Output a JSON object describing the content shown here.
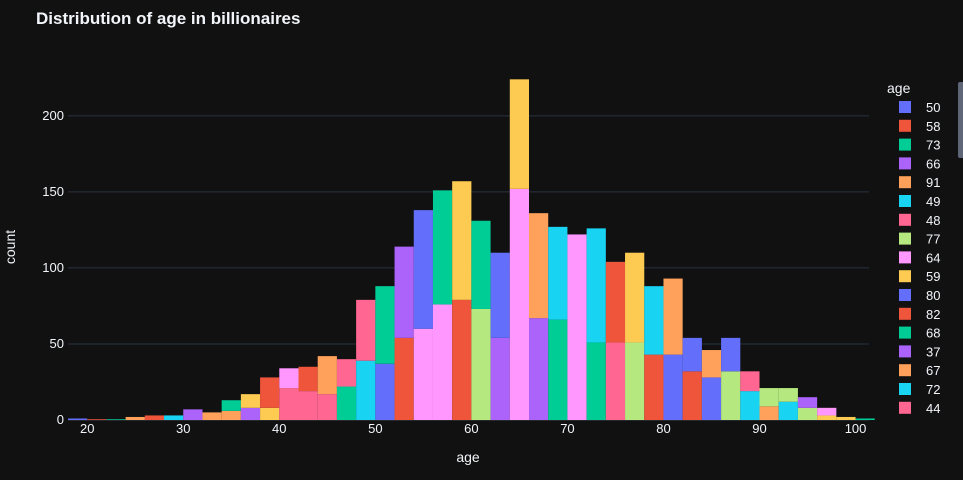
{
  "chart_data": {
    "type": "bar",
    "title": "Distribution of age in billionaires",
    "xlabel": "age",
    "ylabel": "count",
    "xlim": [
      18,
      101.4
    ],
    "ylim": [
      0,
      240
    ],
    "xticks": [
      "20",
      "30",
      "40",
      "50",
      "60",
      "70",
      "80",
      "90",
      "100"
    ],
    "yticks": [
      "0",
      "50",
      "100",
      "150",
      "200"
    ],
    "grid": true,
    "legend_title": "age",
    "legend_position": "right",
    "bin_width": 2,
    "bars": [
      {
        "x0": 18,
        "base": 0,
        "value": 1,
        "color": "#636efa"
      },
      {
        "x0": 20,
        "base": 0,
        "value": 0.5,
        "color": "#ef553b"
      },
      {
        "x0": 22,
        "base": 0,
        "value": 0.5,
        "color": "#00cc96"
      },
      {
        "x0": 24,
        "base": 0,
        "value": 2,
        "color": "#ffa15a"
      },
      {
        "x0": 26,
        "base": 0,
        "value": 3,
        "color": "#ef553b"
      },
      {
        "x0": 28,
        "base": 0,
        "value": 3,
        "color": "#19d3f3"
      },
      {
        "x0": 30,
        "base": 0,
        "value": 7,
        "color": "#ab63fa"
      },
      {
        "x0": 32,
        "base": 0,
        "value": 5,
        "color": "#ffa15a"
      },
      {
        "x0": 34,
        "base": 0,
        "value": 6,
        "color": "#ffa15a"
      },
      {
        "x0": 34,
        "base": 6,
        "value": 7,
        "color": "#00cc96"
      },
      {
        "x0": 36,
        "base": 0,
        "value": 8,
        "color": "#ab63fa"
      },
      {
        "x0": 36,
        "base": 8,
        "value": 9,
        "color": "#fecb52"
      },
      {
        "x0": 38,
        "base": 0,
        "value": 8,
        "color": "#fecb52"
      },
      {
        "x0": 38,
        "base": 8,
        "value": 20,
        "color": "#ef553b"
      },
      {
        "x0": 40,
        "base": 0,
        "value": 21,
        "color": "#ff6692"
      },
      {
        "x0": 40,
        "base": 21,
        "value": 13,
        "color": "#ff97ff"
      },
      {
        "x0": 42,
        "base": 0,
        "value": 19,
        "color": "#ff6692"
      },
      {
        "x0": 42,
        "base": 19,
        "value": 16,
        "color": "#ef553b"
      },
      {
        "x0": 44,
        "base": 0,
        "value": 17,
        "color": "#ff6692"
      },
      {
        "x0": 44,
        "base": 17,
        "value": 25,
        "color": "#ffa15a"
      },
      {
        "x0": 46,
        "base": 0,
        "value": 22,
        "color": "#00cc96"
      },
      {
        "x0": 46,
        "base": 22,
        "value": 18,
        "color": "#ff6692"
      },
      {
        "x0": 48,
        "base": 0,
        "value": 39,
        "color": "#19d3f3"
      },
      {
        "x0": 48,
        "base": 39,
        "value": 40,
        "color": "#ff6692"
      },
      {
        "x0": 50,
        "base": 0,
        "value": 37,
        "color": "#636efa"
      },
      {
        "x0": 50,
        "base": 37,
        "value": 51,
        "color": "#00cc96"
      },
      {
        "x0": 52,
        "base": 0,
        "value": 54,
        "color": "#ef553b"
      },
      {
        "x0": 52,
        "base": 54,
        "value": 60,
        "color": "#ab63fa"
      },
      {
        "x0": 54,
        "base": 0,
        "value": 60,
        "color": "#ff97ff"
      },
      {
        "x0": 54,
        "base": 60,
        "value": 78,
        "color": "#636efa"
      },
      {
        "x0": 56,
        "base": 0,
        "value": 76,
        "color": "#ff97ff"
      },
      {
        "x0": 56,
        "base": 76,
        "value": 75,
        "color": "#00cc96"
      },
      {
        "x0": 58,
        "base": 0,
        "value": 79,
        "color": "#ef553b"
      },
      {
        "x0": 58,
        "base": 79,
        "value": 78,
        "color": "#fecb52"
      },
      {
        "x0": 60,
        "base": 0,
        "value": 73,
        "color": "#b6e880"
      },
      {
        "x0": 60,
        "base": 73,
        "value": 58,
        "color": "#00cc96"
      },
      {
        "x0": 62,
        "base": 0,
        "value": 54,
        "color": "#ab63fa"
      },
      {
        "x0": 62,
        "base": 54,
        "value": 56,
        "color": "#636efa"
      },
      {
        "x0": 64,
        "base": 0,
        "value": 152,
        "color": "#ff97ff"
      },
      {
        "x0": 64,
        "base": 152,
        "value": 72,
        "color": "#fecb52"
      },
      {
        "x0": 66,
        "base": 0,
        "value": 67,
        "color": "#ab63fa"
      },
      {
        "x0": 66,
        "base": 67,
        "value": 69,
        "color": "#ffa15a"
      },
      {
        "x0": 68,
        "base": 0,
        "value": 66,
        "color": "#00cc96"
      },
      {
        "x0": 68,
        "base": 66,
        "value": 61,
        "color": "#19d3f3"
      },
      {
        "x0": 70,
        "base": 0,
        "value": 122,
        "color": "#ff97ff"
      },
      {
        "x0": 72,
        "base": 0,
        "value": 51,
        "color": "#00cc96"
      },
      {
        "x0": 72,
        "base": 51,
        "value": 75,
        "color": "#19d3f3"
      },
      {
        "x0": 74,
        "base": 0,
        "value": 51,
        "color": "#ff6692"
      },
      {
        "x0": 74,
        "base": 51,
        "value": 53,
        "color": "#ef553b"
      },
      {
        "x0": 76,
        "base": 0,
        "value": 51,
        "color": "#b6e880"
      },
      {
        "x0": 76,
        "base": 51,
        "value": 59,
        "color": "#fecb52"
      },
      {
        "x0": 78,
        "base": 0,
        "value": 43,
        "color": "#ef553b"
      },
      {
        "x0": 78,
        "base": 43,
        "value": 45,
        "color": "#19d3f3"
      },
      {
        "x0": 80,
        "base": 0,
        "value": 43,
        "color": "#636efa"
      },
      {
        "x0": 80,
        "base": 43,
        "value": 50,
        "color": "#ffa15a"
      },
      {
        "x0": 82,
        "base": 0,
        "value": 32,
        "color": "#ef553b"
      },
      {
        "x0": 82,
        "base": 32,
        "value": 22,
        "color": "#636efa"
      },
      {
        "x0": 84,
        "base": 0,
        "value": 28,
        "color": "#636efa"
      },
      {
        "x0": 84,
        "base": 28,
        "value": 18,
        "color": "#ffa15a"
      },
      {
        "x0": 86,
        "base": 0,
        "value": 32,
        "color": "#b6e880"
      },
      {
        "x0": 86,
        "base": 32,
        "value": 22,
        "color": "#636efa"
      },
      {
        "x0": 88,
        "base": 0,
        "value": 19,
        "color": "#19d3f3"
      },
      {
        "x0": 88,
        "base": 19,
        "value": 13,
        "color": "#ff6692"
      },
      {
        "x0": 90,
        "base": 0,
        "value": 9,
        "color": "#ffa15a"
      },
      {
        "x0": 90,
        "base": 9,
        "value": 12,
        "color": "#b6e880"
      },
      {
        "x0": 92,
        "base": 0,
        "value": 12,
        "color": "#19d3f3"
      },
      {
        "x0": 92,
        "base": 12,
        "value": 9,
        "color": "#b6e880"
      },
      {
        "x0": 94,
        "base": 0,
        "value": 8,
        "color": "#b6e880"
      },
      {
        "x0": 94,
        "base": 8,
        "value": 7,
        "color": "#ab63fa"
      },
      {
        "x0": 96,
        "base": 0,
        "value": 3,
        "color": "#fecb52"
      },
      {
        "x0": 96,
        "base": 3,
        "value": 5,
        "color": "#ff97ff"
      },
      {
        "x0": 98,
        "base": 0,
        "value": 2,
        "color": "#fecb52"
      },
      {
        "x0": 100,
        "base": 0,
        "value": 1,
        "color": "#00cc96"
      }
    ],
    "series": [
      {
        "name": "50",
        "color": "#636efa"
      },
      {
        "name": "58",
        "color": "#ef553b"
      },
      {
        "name": "73",
        "color": "#00cc96"
      },
      {
        "name": "66",
        "color": "#ab63fa"
      },
      {
        "name": "91",
        "color": "#ffa15a"
      },
      {
        "name": "49",
        "color": "#19d3f3"
      },
      {
        "name": "48",
        "color": "#ff6692"
      },
      {
        "name": "77",
        "color": "#b6e880"
      },
      {
        "name": "64",
        "color": "#ff97ff"
      },
      {
        "name": "59",
        "color": "#fecb52"
      },
      {
        "name": "80",
        "color": "#636efa"
      },
      {
        "name": "82",
        "color": "#ef553b"
      },
      {
        "name": "68",
        "color": "#00cc96"
      },
      {
        "name": "37",
        "color": "#ab63fa"
      },
      {
        "name": "67",
        "color": "#ffa15a"
      },
      {
        "name": "72",
        "color": "#19d3f3"
      },
      {
        "name": "44",
        "color": "#ff6692"
      }
    ]
  }
}
